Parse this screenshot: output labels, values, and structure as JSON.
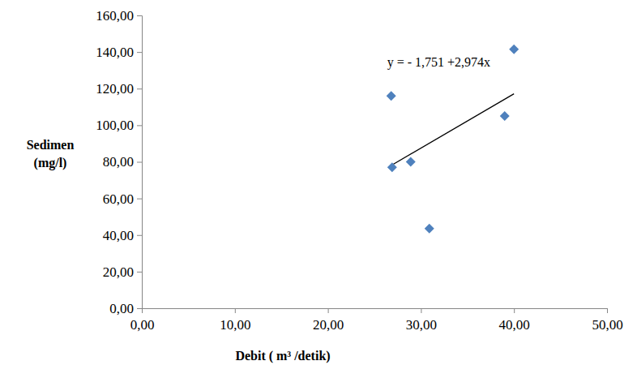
{
  "chart_data": {
    "type": "scatter",
    "x_label": "Debit ( m³ /detik)",
    "y_label": [
      "Sedimen",
      "(mg/l)"
    ],
    "x": [
      26.8,
      26.9,
      28.9,
      30.9,
      39.0,
      40.0
    ],
    "values": [
      116.0,
      77.0,
      80.0,
      43.5,
      105.0,
      141.5
    ],
    "color": "#4f81bd",
    "marker": "diamond",
    "trendline": {
      "x": [
        26.8,
        40.0
      ],
      "values": [
        78.0,
        117.2
      ],
      "color": "#000000",
      "line_style": "solid"
    },
    "annotations": [
      "y = - 1,751 +2,974x"
    ],
    "xlim": [
      0,
      50
    ],
    "xticks": [
      {
        "value": 0,
        "label": "0,00"
      },
      {
        "value": 10,
        "label": "10,00"
      },
      {
        "value": 20,
        "label": "20,00"
      },
      {
        "value": 30,
        "label": "30,00"
      },
      {
        "value": 40,
        "label": "40,00"
      },
      {
        "value": 50,
        "label": "50,00"
      }
    ],
    "ylim": [
      0,
      160
    ],
    "yticks": [
      {
        "value": 0,
        "label": "0,00"
      },
      {
        "value": 20,
        "label": "20,00"
      },
      {
        "value": 40,
        "label": "40,00"
      },
      {
        "value": 60,
        "label": "60,00"
      },
      {
        "value": 80,
        "label": "80,00"
      },
      {
        "value": 100,
        "label": "100,00"
      },
      {
        "value": 120,
        "label": "120,00"
      },
      {
        "value": 140,
        "label": "140,00"
      },
      {
        "value": 160,
        "label": "160,00"
      }
    ],
    "grid": false
  }
}
